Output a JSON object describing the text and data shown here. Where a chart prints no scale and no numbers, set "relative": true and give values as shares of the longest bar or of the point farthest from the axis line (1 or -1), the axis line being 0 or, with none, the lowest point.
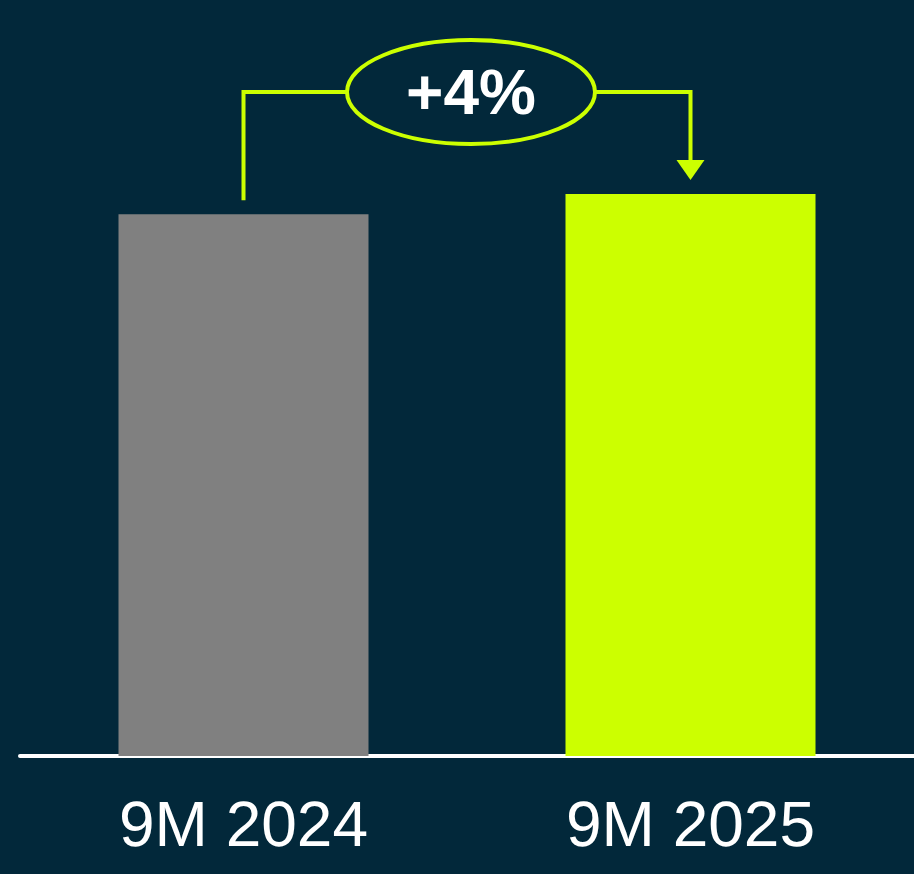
{
  "chart_data": {
    "type": "bar",
    "relative": true,
    "categories": [
      "9M 2024",
      "9M 2025"
    ],
    "values": [
      0.964,
      1
    ],
    "colors": [
      "#808080",
      "#ccff00"
    ],
    "annotations": [
      "+4%"
    ]
  }
}
